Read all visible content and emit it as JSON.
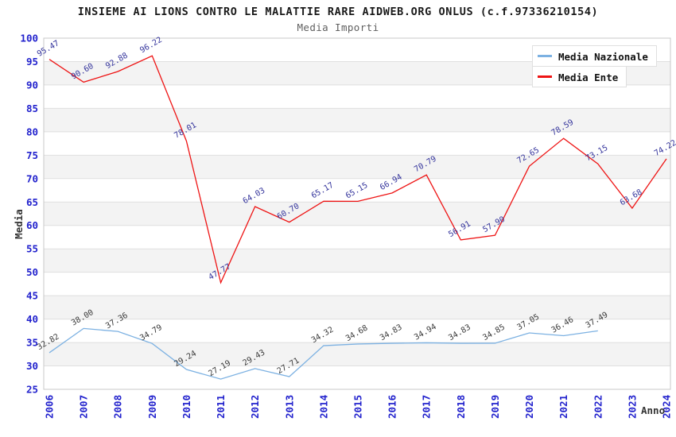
{
  "title": "INSIEME AI LIONS CONTRO LE MALATTIE RARE AIDWEB.ORG ONLUS (c.f.97336210154)",
  "subtitle": "Media Importi",
  "axis": {
    "y_label": "Media",
    "x_label": "Anno"
  },
  "colors": {
    "tick_label": "#2222cd",
    "band_fill": "#f3f3f3",
    "grid_line": "#dfdfdf",
    "plot_border": "#c8c8c8"
  },
  "legend": {
    "items": [
      {
        "label": "Media Nazionale",
        "color": "#7cb1e2"
      },
      {
        "label": "Media Ente",
        "color": "#ee1414"
      }
    ]
  },
  "chart_data": {
    "type": "line",
    "title": "INSIEME AI LIONS CONTRO LE MALATTIE RARE AIDWEB.ORG ONLUS (c.f.97336210154)",
    "subtitle": "Media Importi",
    "xlabel": "Anno",
    "ylabel": "Media",
    "ylim": [
      25,
      100
    ],
    "ytick_step": 5,
    "grid": "horizontal-bands",
    "legend_position": "top-right",
    "x": [
      2006,
      2007,
      2008,
      2009,
      2010,
      2011,
      2012,
      2013,
      2014,
      2015,
      2016,
      2017,
      2018,
      2019,
      2020,
      2021,
      2022,
      2023,
      2024
    ],
    "series": [
      {
        "name": "Media Nazionale",
        "color": "#7cb1e2",
        "label_color": "#3a3a3a",
        "values": [
          32.82,
          38.0,
          37.36,
          34.79,
          29.24,
          27.19,
          29.43,
          27.71,
          34.32,
          34.68,
          34.83,
          34.94,
          34.83,
          34.85,
          37.05,
          36.46,
          37.49,
          null,
          null
        ]
      },
      {
        "name": "Media Ente",
        "color": "#ee1414",
        "label_color": "#34349c",
        "values": [
          95.47,
          90.6,
          92.88,
          96.22,
          78.01,
          47.77,
          64.03,
          60.7,
          65.17,
          65.15,
          66.94,
          70.79,
          56.91,
          57.9,
          72.65,
          78.59,
          73.15,
          63.68,
          74.22
        ]
      }
    ]
  }
}
